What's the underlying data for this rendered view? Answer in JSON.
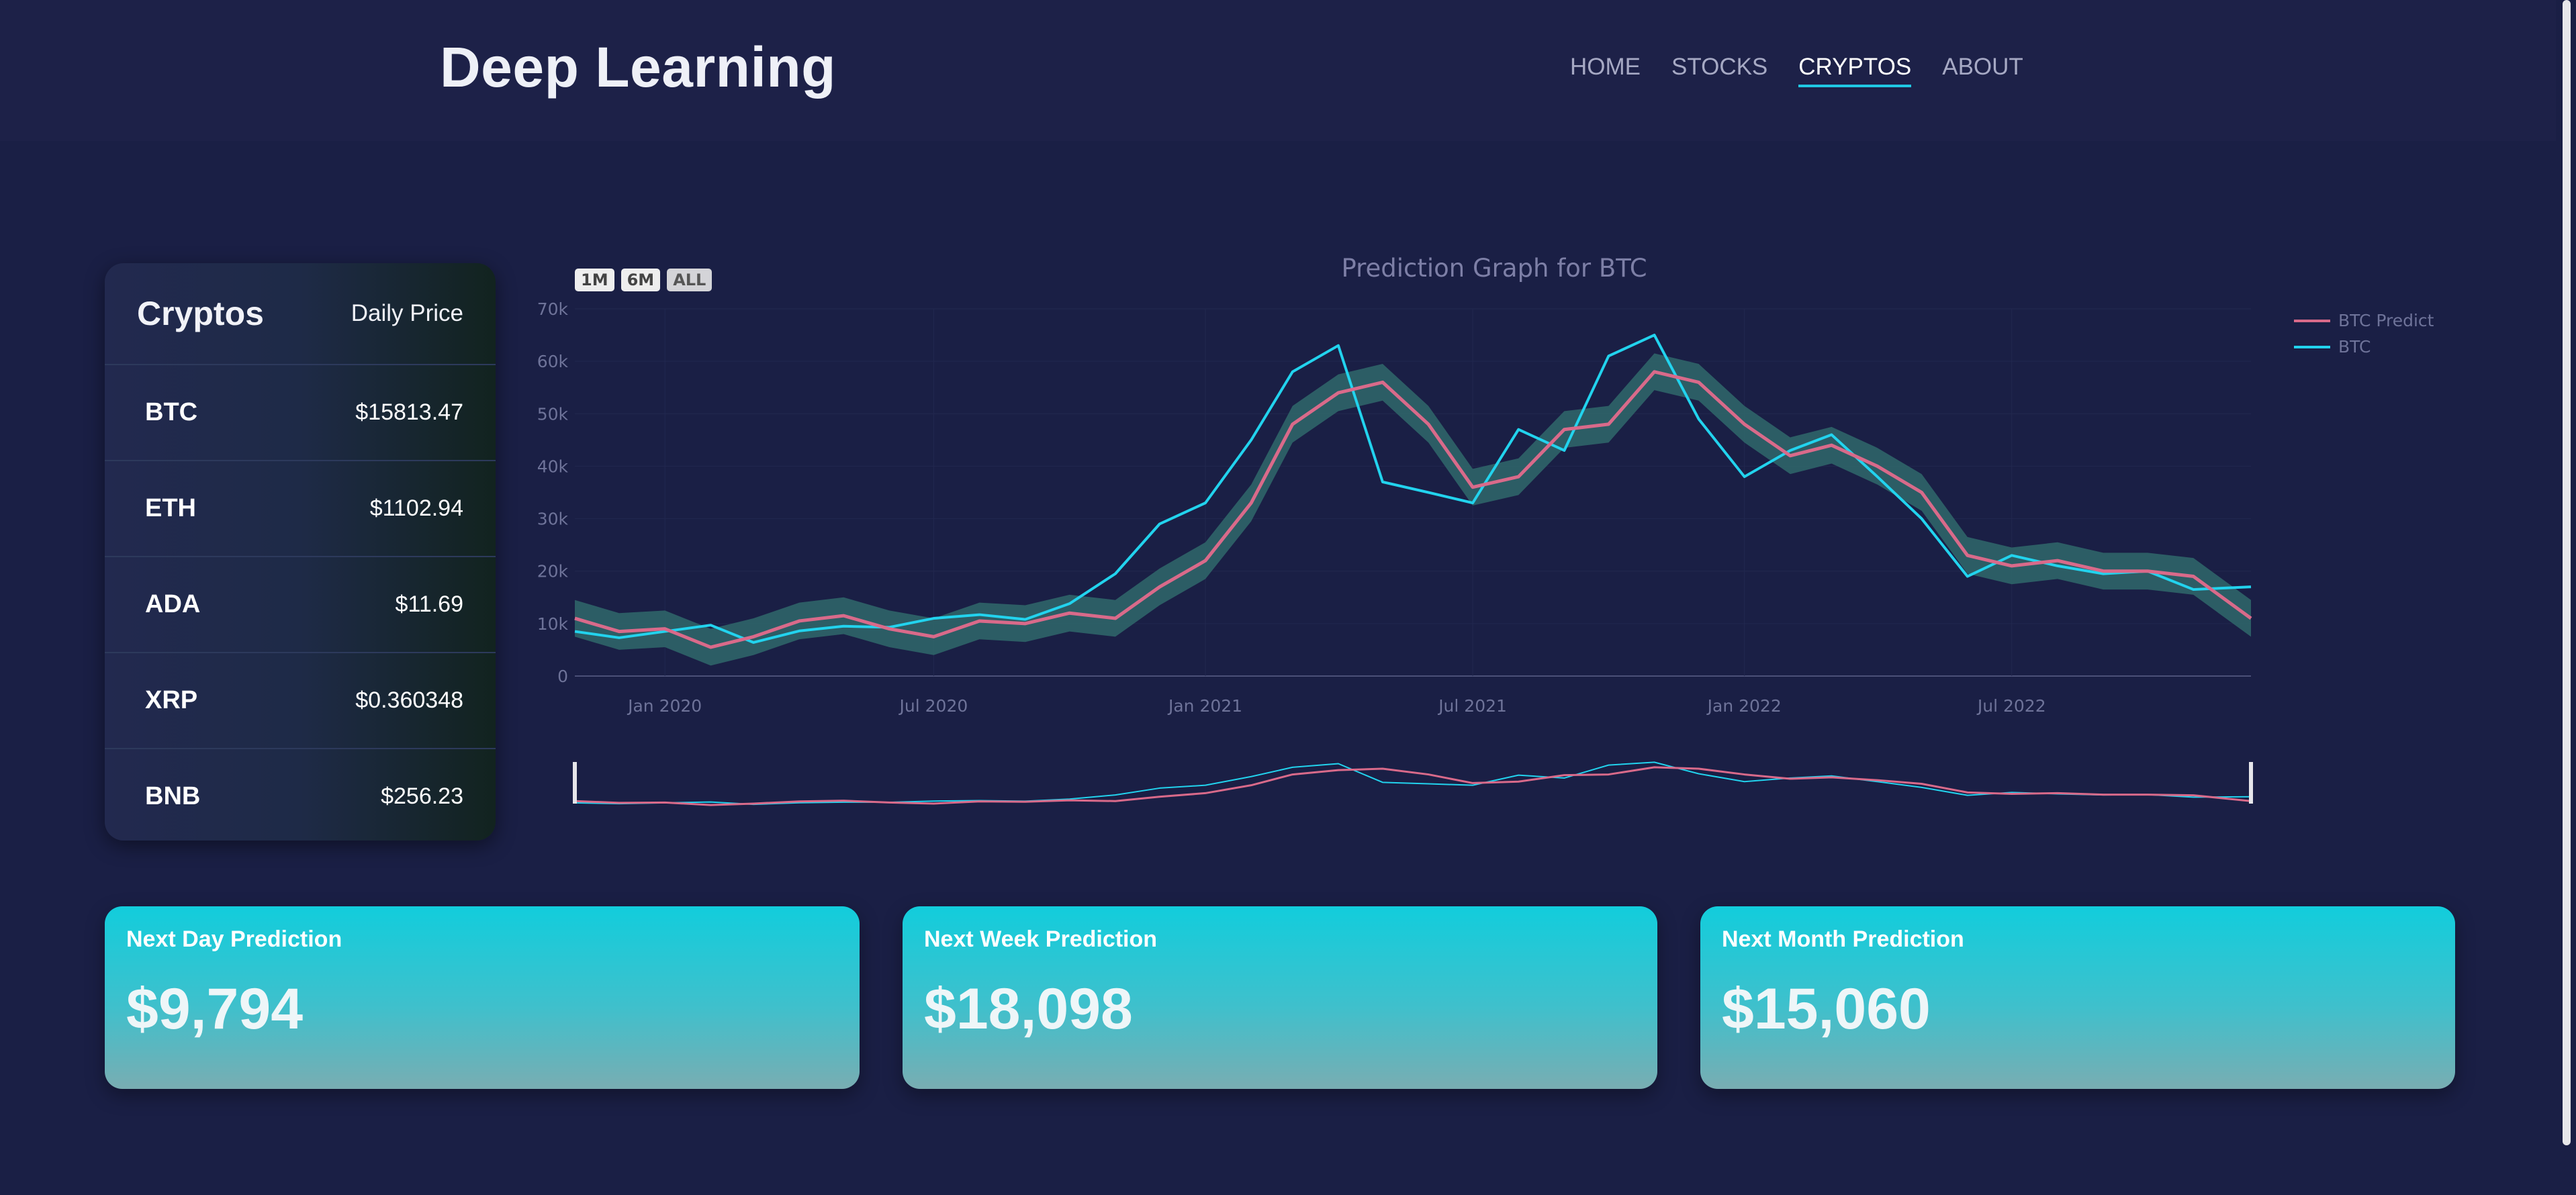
{
  "header": {
    "brand": "Deep Learning",
    "nav": [
      "HOME",
      "STOCKS",
      "CRYPTOS",
      "ABOUT"
    ],
    "active_nav": "CRYPTOS"
  },
  "crypto_table": {
    "title": "Cryptos",
    "subtitle": "Daily Price",
    "rows": [
      {
        "symbol": "BTC",
        "price": "$15813.47"
      },
      {
        "symbol": "ETH",
        "price": "$1102.94"
      },
      {
        "symbol": "ADA",
        "price": "$11.69"
      },
      {
        "symbol": "XRP",
        "price": "$0.360348"
      },
      {
        "symbol": "BNB",
        "price": "$256.23"
      }
    ]
  },
  "range_buttons": [
    "1M",
    "6M",
    "ALL"
  ],
  "predictions": [
    {
      "label": "Next Day Prediction",
      "value": "$9,794"
    },
    {
      "label": "Next Week Prediction",
      "value": "$18,098"
    },
    {
      "label": "Next Month Prediction",
      "value": "$15,060"
    }
  ],
  "colors": {
    "background": "#1a1f45",
    "accent": "#20c8e3",
    "btc_line": "#22d3ee",
    "predict_line": "#d96a8a",
    "band": "#2f6468"
  },
  "chart_data": {
    "type": "line",
    "title": "Prediction Graph for BTC",
    "xlabel": "",
    "ylabel": "",
    "x_ticks": [
      "Jan 2020",
      "Jul 2020",
      "Jan 2021",
      "Jul 2021",
      "Jan 2022",
      "Jul 2022"
    ],
    "y_ticks": [
      "0",
      "10k",
      "20k",
      "30k",
      "40k",
      "50k",
      "60k",
      "70k"
    ],
    "ylim": [
      0,
      70000
    ],
    "xlim": [
      "2019-11-01",
      "2022-12-10"
    ],
    "legend": {
      "position": "top-right"
    },
    "grid": true,
    "range_slider": true,
    "series": [
      {
        "name": "BTC Predict",
        "x": [
          "2019-11-01",
          "2019-12-01",
          "2020-01-01",
          "2020-02-01",
          "2020-03-01",
          "2020-04-01",
          "2020-05-01",
          "2020-06-01",
          "2020-07-01",
          "2020-08-01",
          "2020-09-01",
          "2020-10-01",
          "2020-11-01",
          "2020-12-01",
          "2021-01-01",
          "2021-02-01",
          "2021-03-01",
          "2021-04-01",
          "2021-05-01",
          "2021-06-01",
          "2021-07-01",
          "2021-08-01",
          "2021-09-01",
          "2021-10-01",
          "2021-11-01",
          "2021-12-01",
          "2022-01-01",
          "2022-02-01",
          "2022-03-01",
          "2022-04-01",
          "2022-05-01",
          "2022-06-01",
          "2022-07-01",
          "2022-08-01",
          "2022-09-01",
          "2022-10-01",
          "2022-11-01",
          "2022-12-10"
        ],
        "values": [
          11000,
          8500,
          9000,
          5500,
          7500,
          10500,
          11500,
          9000,
          7500,
          10500,
          10000,
          12000,
          11000,
          17000,
          22000,
          33000,
          48000,
          54000,
          56000,
          48000,
          36000,
          38000,
          47000,
          48000,
          58000,
          56000,
          48000,
          42000,
          44000,
          40000,
          35000,
          23000,
          21000,
          22000,
          20000,
          20000,
          19000,
          11000
        ]
      },
      {
        "name": "BTC",
        "x": [
          "2019-11-01",
          "2019-12-01",
          "2020-01-01",
          "2020-02-01",
          "2020-03-01",
          "2020-04-01",
          "2020-05-01",
          "2020-06-01",
          "2020-07-01",
          "2020-08-01",
          "2020-09-01",
          "2020-10-01",
          "2020-11-01",
          "2020-12-01",
          "2021-01-01",
          "2021-02-01",
          "2021-03-01",
          "2021-04-01",
          "2021-05-01",
          "2021-06-01",
          "2021-07-01",
          "2021-08-01",
          "2021-09-01",
          "2021-10-01",
          "2021-11-01",
          "2021-12-01",
          "2022-01-01",
          "2022-02-01",
          "2022-03-01",
          "2022-04-01",
          "2022-05-01",
          "2022-06-01",
          "2022-07-01",
          "2022-08-01",
          "2022-09-01",
          "2022-10-01",
          "2022-11-01",
          "2022-12-10"
        ],
        "values": [
          8500,
          7300,
          8500,
          9700,
          6400,
          8600,
          9500,
          9300,
          11000,
          11700,
          10800,
          13800,
          19500,
          29000,
          33000,
          45000,
          58000,
          63000,
          37000,
          35000,
          33000,
          47000,
          43000,
          61000,
          65000,
          49000,
          38000,
          43000,
          46000,
          38000,
          30000,
          19000,
          23000,
          21000,
          19500,
          20000,
          16500,
          17000
        ]
      }
    ],
    "band": {
      "name": "",
      "half_width": 3500
    }
  }
}
